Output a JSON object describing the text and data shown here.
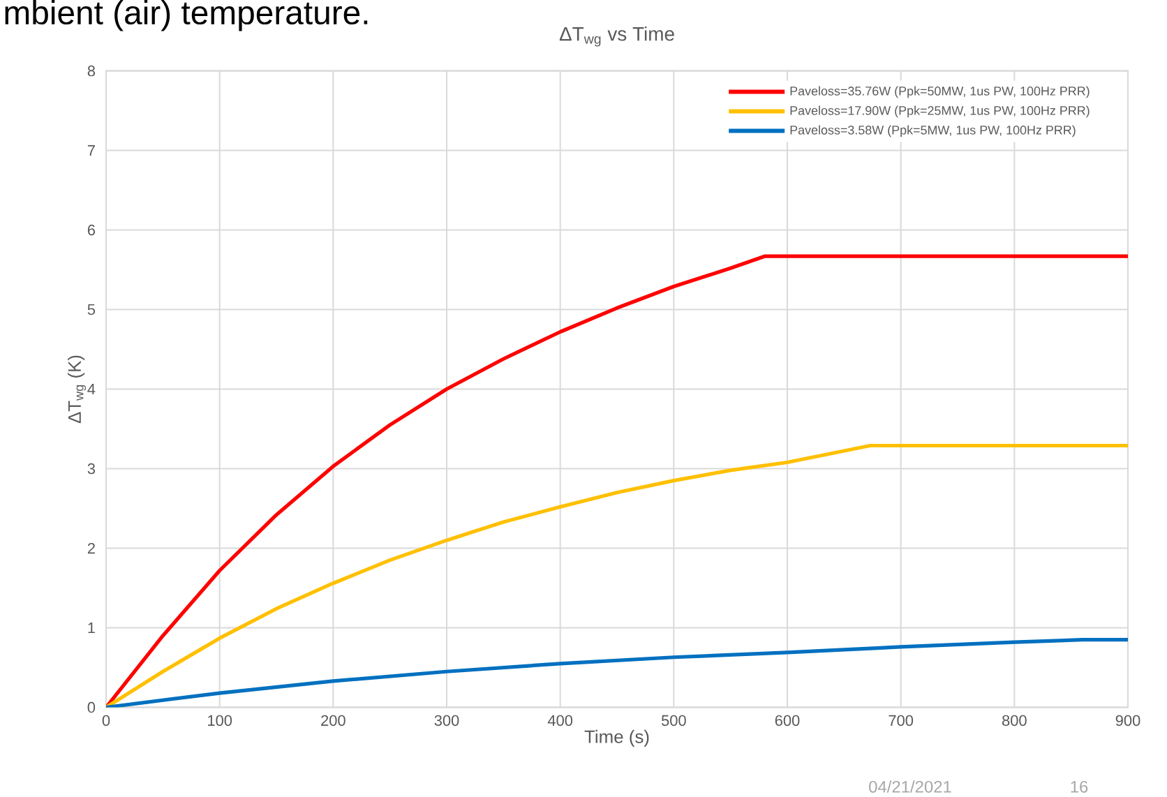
{
  "chart_data": {
    "type": "line",
    "title": "ΔT$_{wg}$ vs Time",
    "xlabel": "Time (s)",
    "ylabel": "ΔT$_{wg}$ (K)",
    "xlim": [
      0,
      900
    ],
    "xticks": [
      0,
      100,
      200,
      300,
      400,
      500,
      600,
      700,
      800,
      900
    ],
    "ylim": [
      0,
      8
    ],
    "yticks": [
      0,
      1,
      2,
      3,
      4,
      5,
      6,
      7,
      8
    ],
    "grid": true,
    "legend": "top right",
    "marker": "none",
    "line_style": "solid",
    "annotations": [
      "mbient (air) temperature.",
      "04/21/2021",
      "16"
    ],
    "series": [
      {
        "name": "Paveloss=35.76W (Ppk=50MW, 1us PW, 100Hz PRR)",
        "color": "#ff0000",
        "x": [
          0,
          50,
          100,
          150,
          200,
          250,
          300,
          350,
          400,
          450,
          500,
          550,
          580,
          900
        ],
        "values": [
          0,
          0.9,
          1.72,
          2.42,
          3.03,
          3.55,
          4.0,
          4.38,
          4.72,
          5.02,
          5.29,
          5.52,
          5.67,
          5.67
        ]
      },
      {
        "name": "Paveloss=17.90W (Ppk=25MW, 1us PW, 100Hz PRR)",
        "color": "#ffc000",
        "x": [
          0,
          50,
          100,
          150,
          200,
          250,
          300,
          350,
          400,
          450,
          500,
          550,
          600,
          673,
          900
        ],
        "values": [
          0,
          0.45,
          0.87,
          1.24,
          1.56,
          1.85,
          2.1,
          2.33,
          2.52,
          2.7,
          2.85,
          2.98,
          3.08,
          3.29,
          3.29
        ]
      },
      {
        "name": "Paveloss=3.58W (Ppk=5MW, 1us PW, 100Hz PRR)",
        "color": "#0070c0",
        "x": [
          0,
          100,
          200,
          300,
          400,
          500,
          600,
          700,
          800,
          860,
          900
        ],
        "values": [
          0,
          0.18,
          0.33,
          0.45,
          0.55,
          0.63,
          0.69,
          0.76,
          0.82,
          0.85,
          0.85
        ]
      }
    ]
  }
}
